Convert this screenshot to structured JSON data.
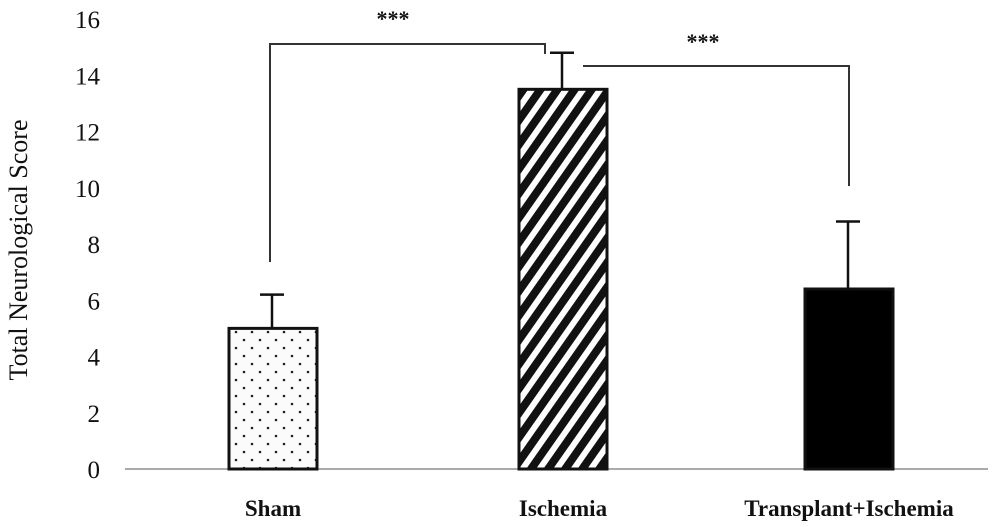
{
  "chart_data": {
    "type": "bar",
    "title": "",
    "xlabel": "",
    "ylabel": "Total Neurological Score",
    "ylim": [
      0,
      16
    ],
    "yticks": [
      0,
      2,
      4,
      6,
      8,
      10,
      12,
      14,
      16
    ],
    "yticks_labels": [
      "0",
      "2",
      "4",
      "6",
      "8",
      "10",
      "12",
      "14",
      "16"
    ],
    "grid": false,
    "legend": "none",
    "categories": [
      "Sham",
      "Ischemia",
      "Transplant+Ischemia"
    ],
    "values": [
      5.0,
      13.5,
      6.4
    ],
    "errors": [
      1.2,
      1.3,
      2.4
    ],
    "fills": [
      "dots",
      "diagonal-hatch",
      "solid-black"
    ],
    "significance": [
      {
        "from": "Sham",
        "to": "Ischemia",
        "label": "***"
      },
      {
        "from": "Ischemia",
        "to": "Transplant+Ischemia",
        "label": "***"
      }
    ]
  },
  "colors": {
    "bar_stroke": "#111111",
    "axis": "#aaaaaa",
    "dot_fill": "#222222",
    "hatch": "#111111",
    "solid": "#000000",
    "bracket": "#333333"
  }
}
